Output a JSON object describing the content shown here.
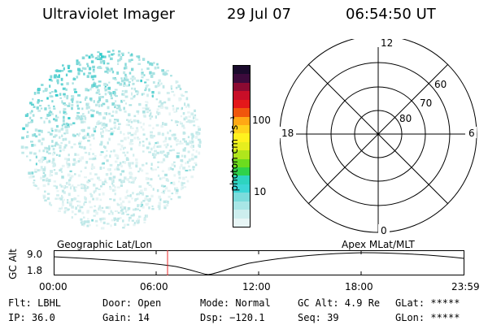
{
  "header": {
    "title": "Ultraviolet Imager",
    "date": "29 Jul 07",
    "time": "06:54:50 UT"
  },
  "colorbar": {
    "unit_label": "photon cm⁻²s⁻¹",
    "ticks": [
      "100",
      "10"
    ],
    "colors": [
      "#e8f6f6",
      "#cdeeee",
      "#a8e6e6",
      "#7cdcdc",
      "#3cd6d6",
      "#2ed4c0",
      "#2fd24a",
      "#6cdc1e",
      "#b0e61c",
      "#e6ee1e",
      "#fff21e",
      "#ffd21c",
      "#ffa814",
      "#f0560c",
      "#e4181a",
      "#c80e28",
      "#8c0a32",
      "#3c0a3c",
      "#1a0a2c"
    ]
  },
  "polar": {
    "labels": {
      "top": "12",
      "right": "6",
      "left": "18",
      "bottom": "0",
      "ring60": "60",
      "ring70": "70",
      "ring80": "80"
    }
  },
  "timeline": {
    "left_label": "Geographic Lat/Lon",
    "right_label": "Apex MLat/MLT",
    "axis_title": "GC Alt",
    "ymax": "9.0",
    "ymin": "1.8",
    "xticks": [
      "00:00",
      "06:00",
      "12:00",
      "18:00",
      "23:59"
    ]
  },
  "info": {
    "flt": "Flt: LBHL",
    "door": "Door: Open",
    "mode": "Mode: Normal",
    "gcalt": "GC Alt: 4.9 Re",
    "glat": "GLat: *****",
    "ip": "IP: 36.0",
    "gain": "Gain: 14",
    "dsp": "Dsp: −120.1",
    "seq": "Seq: 39",
    "glon": "GLon: *****"
  }
}
